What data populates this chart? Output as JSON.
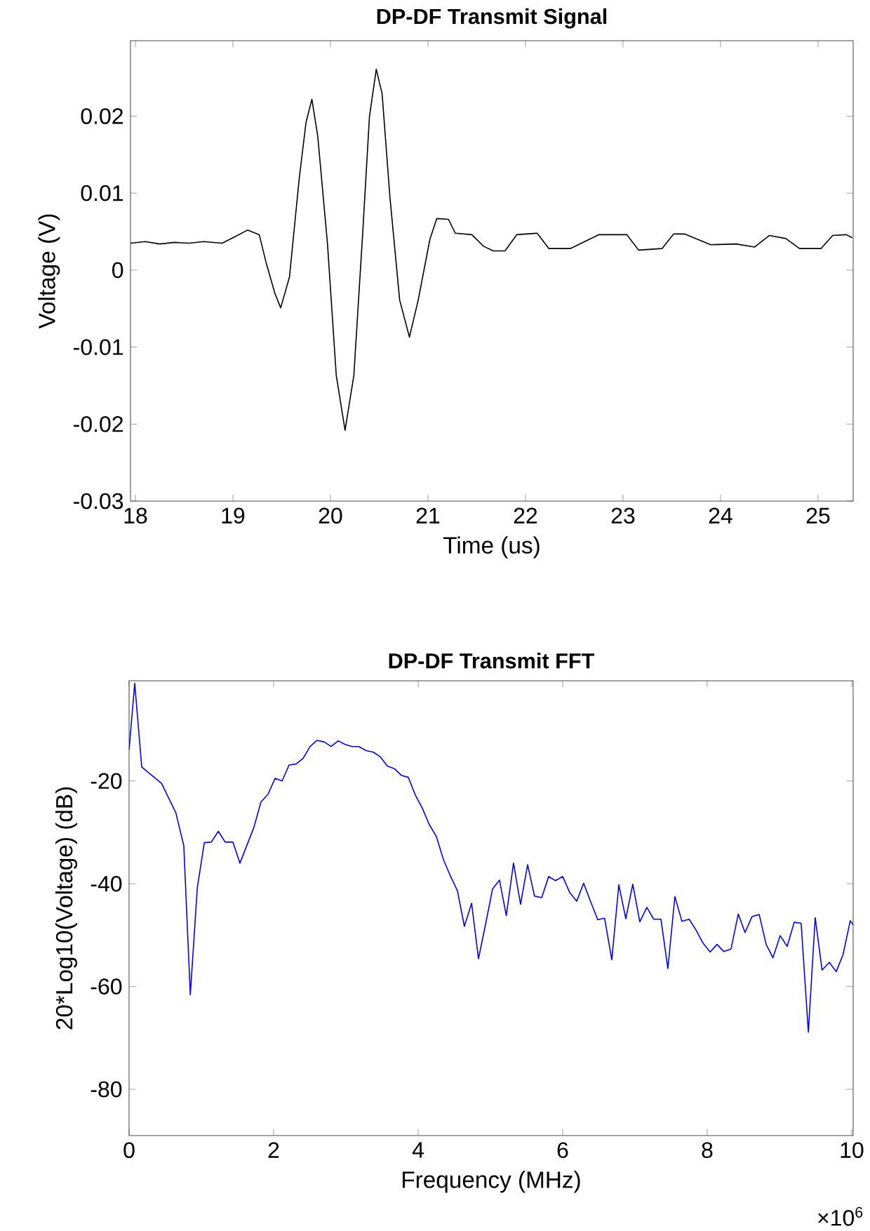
{
  "chart_data": [
    {
      "type": "line",
      "title": "DP-DF Transmit Signal",
      "xlabel": "Time (us)",
      "ylabel": "Voltage (V)",
      "line_style": "solid",
      "xlim": [
        17.95,
        25.36
      ],
      "ylim": [
        -0.03,
        0.0298
      ],
      "xticks": [
        18,
        19,
        20,
        21,
        22,
        23,
        24,
        25
      ],
      "yticks": [
        -0.03,
        -0.02,
        -0.01,
        0,
        0.01,
        0.02
      ],
      "x": [
        17.95,
        18.1,
        18.25,
        18.4,
        18.55,
        18.7,
        18.89,
        19.0,
        19.15,
        19.27,
        19.34,
        19.43,
        19.49,
        19.58,
        19.68,
        19.75,
        19.81,
        19.87,
        19.97,
        20.06,
        20.15,
        20.24,
        20.33,
        20.4,
        20.47,
        20.53,
        20.61,
        20.71,
        20.81,
        20.9,
        21.02,
        21.09,
        21.21,
        21.28,
        21.45,
        21.57,
        21.67,
        21.79,
        21.91,
        22.12,
        22.24,
        22.46,
        22.75,
        23.04,
        23.16,
        23.4,
        23.52,
        23.63,
        23.9,
        24.16,
        24.35,
        24.5,
        24.67,
        24.81,
        25.03,
        25.15,
        25.29,
        25.35
      ],
      "series": [
        {
          "color": "#000000",
          "values": [
            0.0035,
            0.0037,
            0.0034,
            0.0036,
            0.0035,
            0.0037,
            0.0035,
            0.0042,
            0.0052,
            0.0046,
            0.001,
            -0.003,
            -0.0049,
            -0.0009,
            0.0119,
            0.0192,
            0.0222,
            0.0174,
            0.0034,
            -0.0137,
            -0.0208,
            -0.0137,
            0.0046,
            0.0199,
            0.0261,
            0.0229,
            0.0095,
            -0.0039,
            -0.0087,
            -0.0039,
            0.004,
            0.0067,
            0.0066,
            0.0048,
            0.0046,
            0.0031,
            0.0025,
            0.0025,
            0.0046,
            0.0048,
            0.0028,
            0.0028,
            0.0046,
            0.0046,
            0.0026,
            0.0028,
            0.0047,
            0.0047,
            0.0033,
            0.0034,
            0.003,
            0.0045,
            0.0041,
            0.0028,
            0.0028,
            0.0045,
            0.0046,
            0.0042
          ]
        }
      ]
    },
    {
      "type": "line",
      "title": "DP-DF Transmit FFT",
      "xlabel": "Frequency (MHz)",
      "ylabel": "20*Log10(Voltage) (dB)",
      "line_style": "solid",
      "annotations": [
        "×10$^{6}$"
      ],
      "xlim": [
        0,
        10.02
      ],
      "ylim": [
        -89,
        -0.5
      ],
      "xticks": [
        0,
        2,
        4,
        6,
        8,
        10
      ],
      "yticks": [
        -80,
        -60,
        -40,
        -20
      ],
      "x": [
        0,
        0.078,
        0.175,
        0.45,
        0.647,
        0.757,
        0.847,
        0.944,
        1.041,
        1.138,
        1.235,
        1.33,
        1.437,
        1.534,
        1.728,
        1.825,
        1.922,
        2.02,
        2.117,
        2.214,
        2.31,
        2.408,
        2.505,
        2.6,
        2.7,
        2.796,
        2.893,
        2.99,
        3.087,
        3.18,
        3.28,
        3.38,
        3.476,
        3.573,
        3.67,
        3.767,
        3.864,
        3.96,
        4.058,
        4.155,
        4.252,
        4.35,
        4.447,
        4.544,
        4.64,
        4.74,
        4.835,
        4.93,
        5.03,
        5.126,
        5.22,
        5.32,
        5.417,
        5.515,
        5.61,
        5.71,
        5.806,
        5.9,
        6.0,
        6.097,
        6.194,
        6.29,
        6.39,
        6.485,
        6.58,
        6.68,
        6.777,
        6.874,
        6.97,
        7.068,
        7.165,
        7.26,
        7.36,
        7.456,
        7.553,
        7.65,
        7.75,
        7.845,
        7.94,
        8.04,
        8.136,
        8.23,
        8.33,
        8.43,
        8.524,
        8.62,
        8.72,
        8.816,
        8.91,
        9.01,
        9.107,
        9.204,
        9.3,
        9.4,
        9.495,
        9.59,
        9.69,
        9.786,
        9.88,
        9.98,
        10.02
      ],
      "series": [
        {
          "color": "#0000ff",
          "values": [
            -13.9,
            -1,
            -17.3,
            -20.5,
            -26.2,
            -32.6,
            -61.6,
            -40.8,
            -32.0,
            -31.9,
            -29.8,
            -31.9,
            -31.9,
            -36.0,
            -29.0,
            -24.1,
            -22.6,
            -19.5,
            -20.0,
            -16.9,
            -16.7,
            -15.6,
            -13.3,
            -12.1,
            -12.4,
            -13.3,
            -12.2,
            -12.9,
            -13.3,
            -13.3,
            -14.1,
            -14.4,
            -15.3,
            -17.1,
            -17.6,
            -18.9,
            -19.3,
            -22.7,
            -25.3,
            -28.5,
            -30.8,
            -35.3,
            -38.5,
            -41.4,
            -48.3,
            -43.8,
            -54.6,
            -48.1,
            -41.0,
            -39.3,
            -46.2,
            -36.0,
            -44.0,
            -36.3,
            -42.4,
            -42.7,
            -38.6,
            -39.4,
            -38.6,
            -41.7,
            -43.4,
            -39.9,
            -43.6,
            -47.0,
            -46.7,
            -54.8,
            -40.2,
            -46.8,
            -40.1,
            -47.4,
            -44.6,
            -46.9,
            -46.9,
            -56.5,
            -42.5,
            -47.3,
            -46.9,
            -49.0,
            -51.5,
            -53.3,
            -51.8,
            -53.2,
            -52.7,
            -45.9,
            -49.5,
            -46.4,
            -46.0,
            -51.8,
            -54.4,
            -50.1,
            -52.2,
            -47.5,
            -47.7,
            -68.9,
            -46.6,
            -56.8,
            -55.3,
            -57.1,
            -53.8,
            -47.2,
            -48.0
          ]
        }
      ]
    }
  ]
}
